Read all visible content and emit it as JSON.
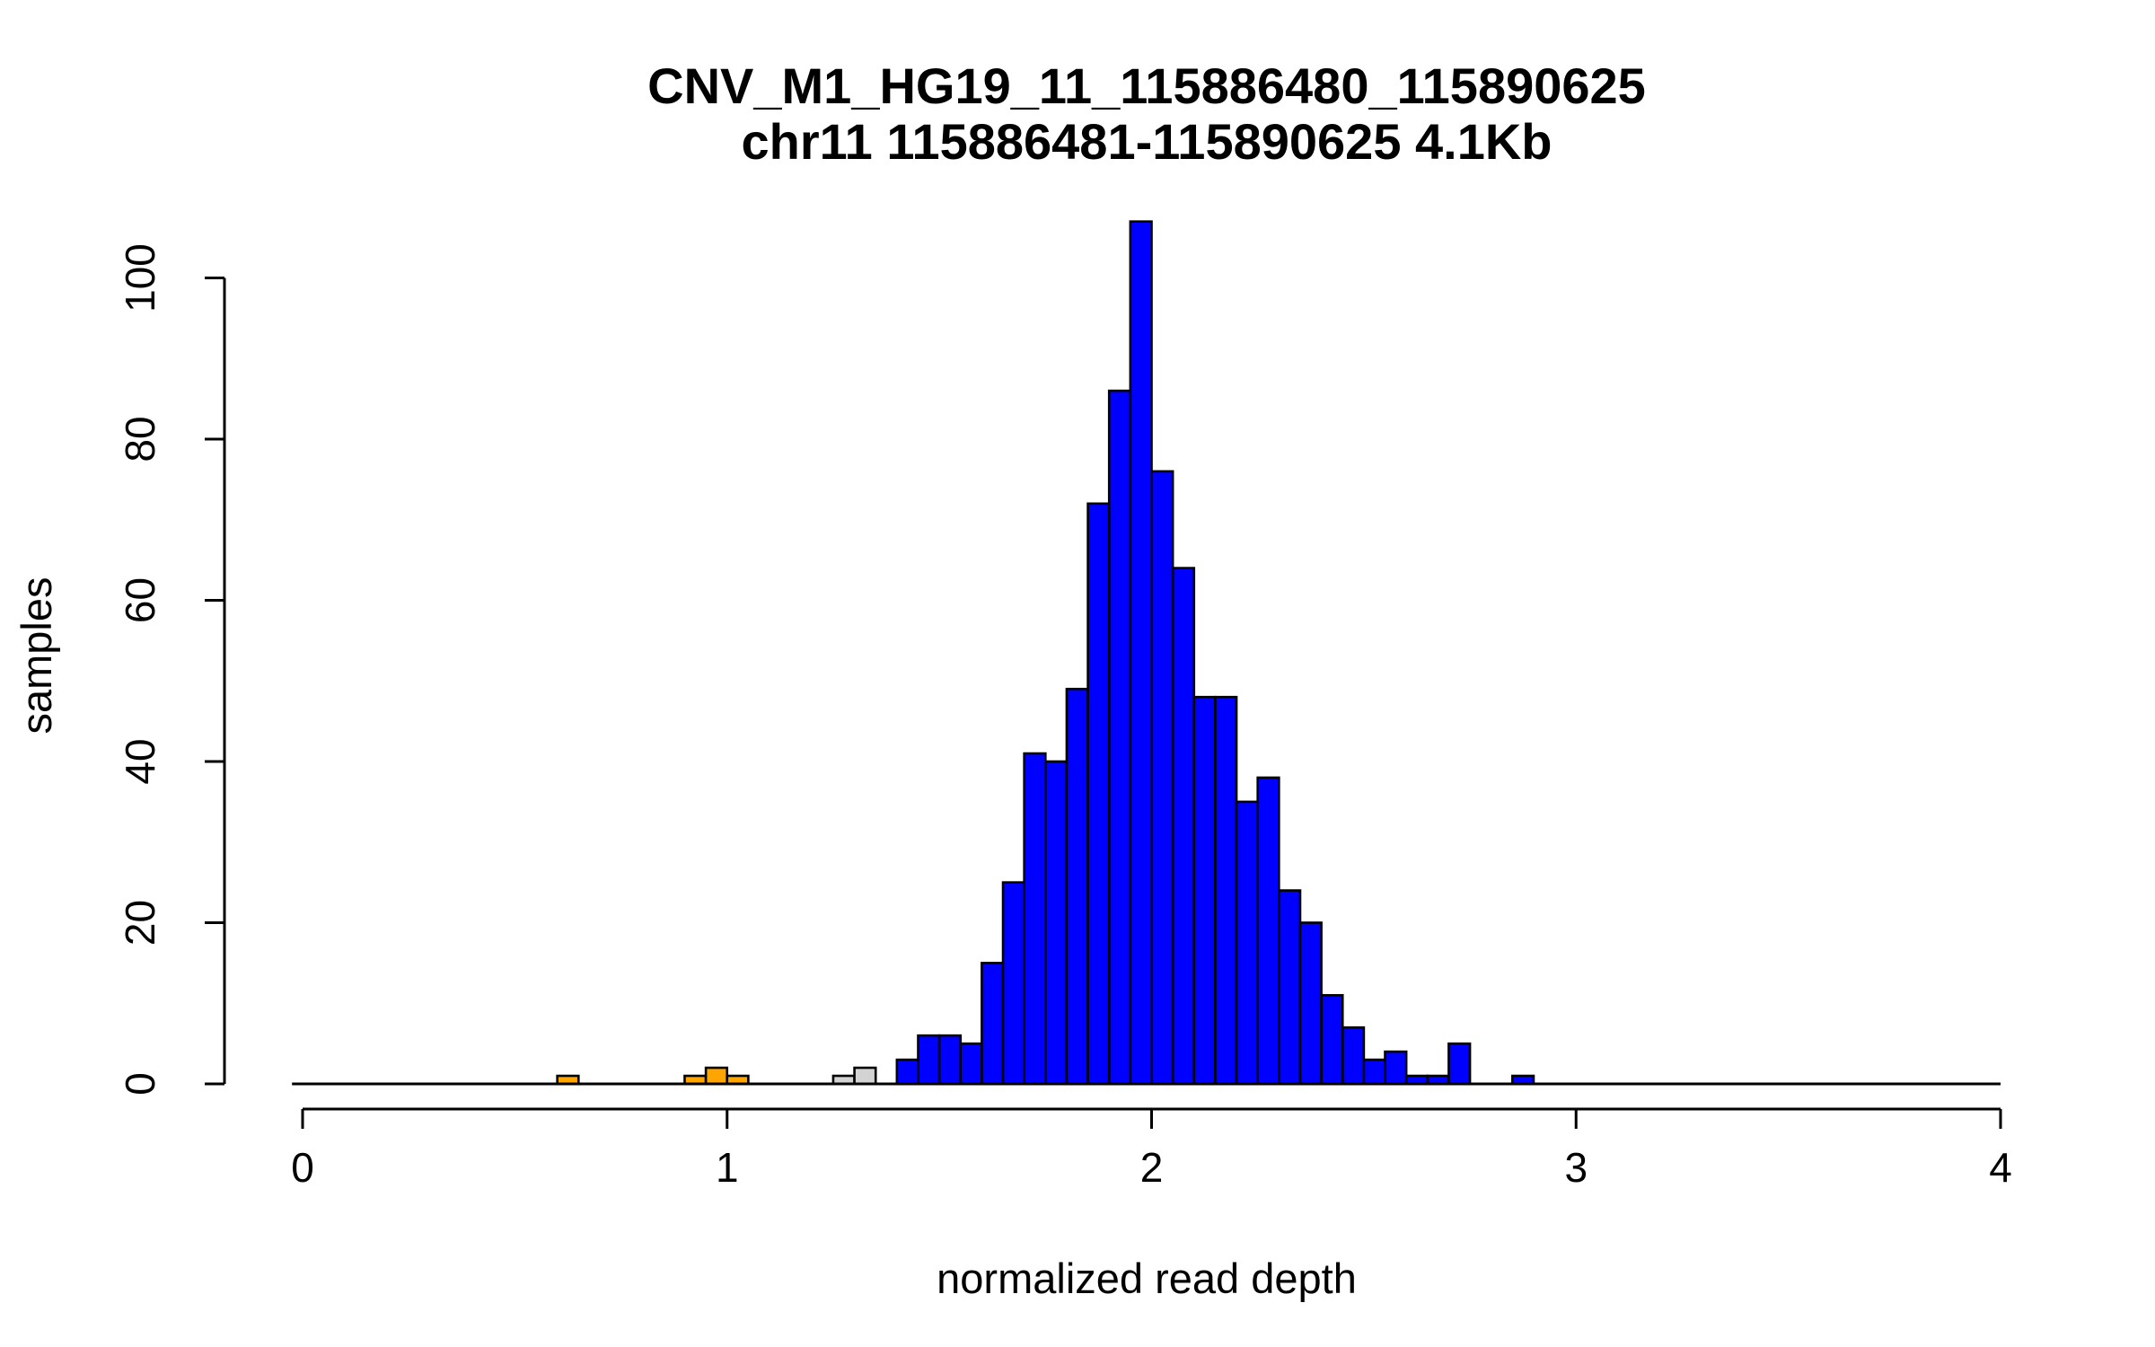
{
  "chart_data": {
    "type": "bar",
    "title": "CNV_M1_HG19_11_115886480_115890625",
    "subtitle": "chr11 115886481-115890625 4.1Kb",
    "xlabel": "normalized read depth",
    "ylabel": "samples",
    "xlim": [
      0,
      4
    ],
    "ylim": [
      0,
      100
    ],
    "x_ticks": [
      "0",
      "1",
      "2",
      "3",
      "4"
    ],
    "y_ticks": [
      "0",
      "20",
      "40",
      "60",
      "80",
      "100"
    ],
    "bin_width": 0.05,
    "baseline_range": [
      -0.025,
      4.0
    ],
    "colors": {
      "orange": "#FFA500",
      "gray": "#D3D3D3",
      "blue": "#0000FF"
    },
    "bins": [
      {
        "x0": 0.6,
        "x1": 0.65,
        "count": 1,
        "color": "orange"
      },
      {
        "x0": 0.9,
        "x1": 0.95,
        "count": 1,
        "color": "orange"
      },
      {
        "x0": 0.95,
        "x1": 1.0,
        "count": 2,
        "color": "orange"
      },
      {
        "x0": 1.0,
        "x1": 1.05,
        "count": 1,
        "color": "orange"
      },
      {
        "x0": 1.25,
        "x1": 1.3,
        "count": 1,
        "color": "gray"
      },
      {
        "x0": 1.3,
        "x1": 1.35,
        "count": 2,
        "color": "gray"
      },
      {
        "x0": 1.4,
        "x1": 1.45,
        "count": 3,
        "color": "blue"
      },
      {
        "x0": 1.45,
        "x1": 1.5,
        "count": 6,
        "color": "blue"
      },
      {
        "x0": 1.5,
        "x1": 1.55,
        "count": 6,
        "color": "blue"
      },
      {
        "x0": 1.55,
        "x1": 1.6,
        "count": 5,
        "color": "blue"
      },
      {
        "x0": 1.6,
        "x1": 1.65,
        "count": 15,
        "color": "blue"
      },
      {
        "x0": 1.65,
        "x1": 1.7,
        "count": 25,
        "color": "blue"
      },
      {
        "x0": 1.7,
        "x1": 1.75,
        "count": 41,
        "color": "blue"
      },
      {
        "x0": 1.75,
        "x1": 1.8,
        "count": 40,
        "color": "blue"
      },
      {
        "x0": 1.8,
        "x1": 1.85,
        "count": 49,
        "color": "blue"
      },
      {
        "x0": 1.85,
        "x1": 1.9,
        "count": 72,
        "color": "blue"
      },
      {
        "x0": 1.9,
        "x1": 1.95,
        "count": 86,
        "color": "blue"
      },
      {
        "x0": 1.95,
        "x1": 2.0,
        "count": 107,
        "color": "blue"
      },
      {
        "x0": 2.0,
        "x1": 2.05,
        "count": 76,
        "color": "blue"
      },
      {
        "x0": 2.05,
        "x1": 2.1,
        "count": 64,
        "color": "blue"
      },
      {
        "x0": 2.1,
        "x1": 2.15,
        "count": 48,
        "color": "blue"
      },
      {
        "x0": 2.15,
        "x1": 2.2,
        "count": 48,
        "color": "blue"
      },
      {
        "x0": 2.2,
        "x1": 2.25,
        "count": 35,
        "color": "blue"
      },
      {
        "x0": 2.25,
        "x1": 2.3,
        "count": 38,
        "color": "blue"
      },
      {
        "x0": 2.3,
        "x1": 2.35,
        "count": 24,
        "color": "blue"
      },
      {
        "x0": 2.35,
        "x1": 2.4,
        "count": 20,
        "color": "blue"
      },
      {
        "x0": 2.4,
        "x1": 2.45,
        "count": 11,
        "color": "blue"
      },
      {
        "x0": 2.45,
        "x1": 2.5,
        "count": 7,
        "color": "blue"
      },
      {
        "x0": 2.5,
        "x1": 2.55,
        "count": 3,
        "color": "blue"
      },
      {
        "x0": 2.55,
        "x1": 2.6,
        "count": 4,
        "color": "blue"
      },
      {
        "x0": 2.6,
        "x1": 2.65,
        "count": 1,
        "color": "blue"
      },
      {
        "x0": 2.65,
        "x1": 2.7,
        "count": 1,
        "color": "blue"
      },
      {
        "x0": 2.7,
        "x1": 2.75,
        "count": 5,
        "color": "blue"
      },
      {
        "x0": 2.85,
        "x1": 2.9,
        "count": 1,
        "color": "blue"
      }
    ]
  }
}
